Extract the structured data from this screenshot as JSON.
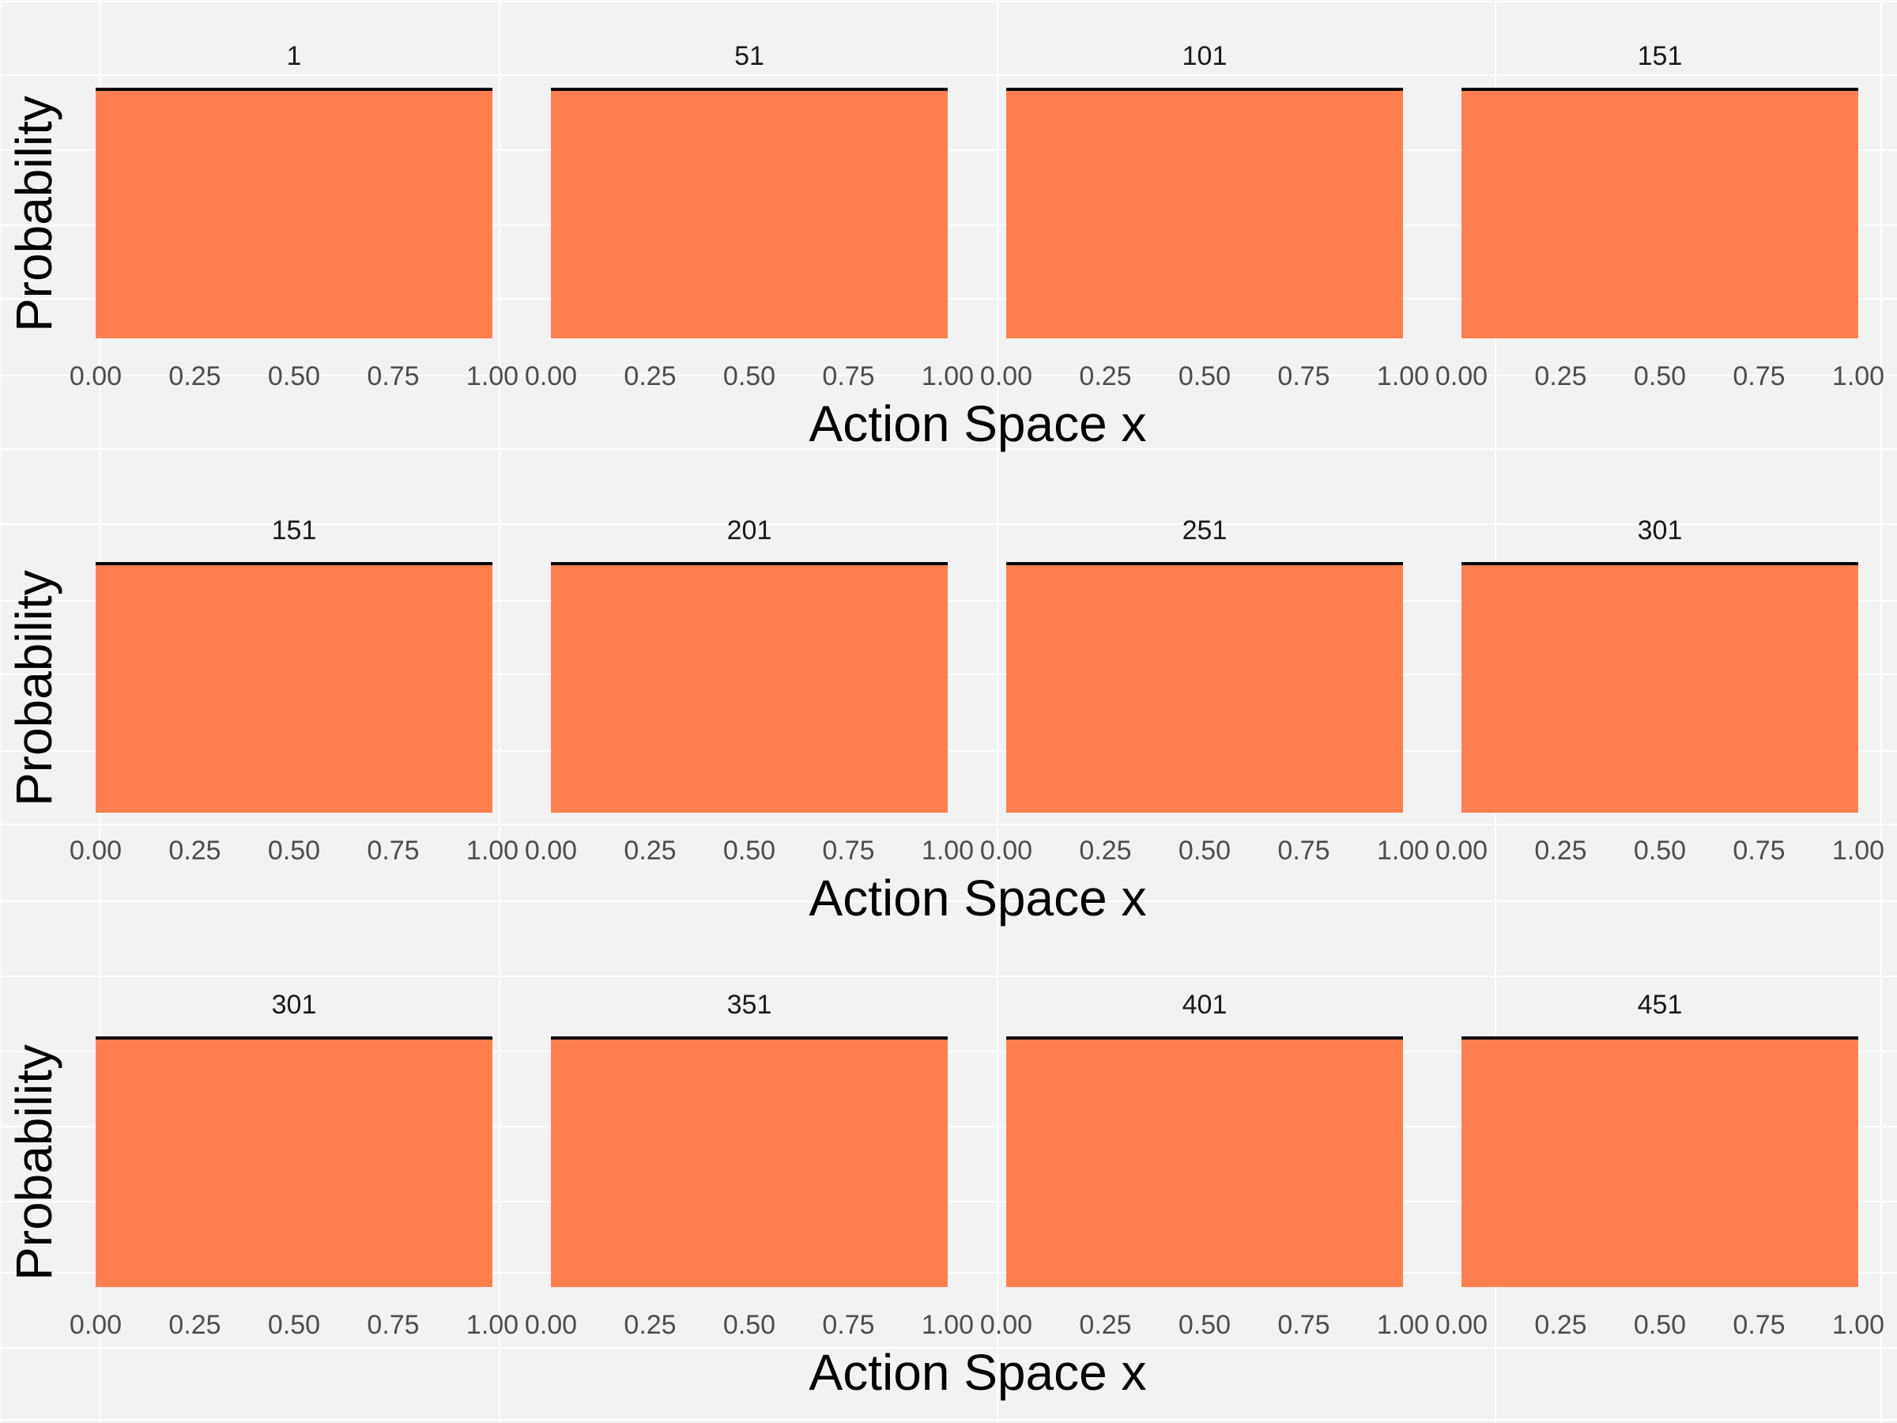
{
  "colors": {
    "background": "#f2f2f2",
    "grid": "#ffffff",
    "fill": "#ff7f50",
    "line": "#000000"
  },
  "chart_data": {
    "type": "area",
    "layout": "facet-grid",
    "x_ticks": [
      "0.00",
      "0.25",
      "0.50",
      "0.75",
      "1.00"
    ],
    "xlim": [
      0,
      1
    ],
    "ylim": [
      0,
      1
    ],
    "grid": true,
    "legend": "none",
    "rows": [
      {
        "xlabel": "Action Space x",
        "ylabel": "Probability",
        "panels": [
          {
            "label": "1",
            "x": [
              0,
              1
            ],
            "y": [
              1,
              1
            ]
          },
          {
            "label": "51",
            "x": [
              0,
              1
            ],
            "y": [
              1,
              1
            ]
          },
          {
            "label": "101",
            "x": [
              0,
              1
            ],
            "y": [
              1,
              1
            ]
          },
          {
            "label": "151",
            "x": [
              0,
              1
            ],
            "y": [
              1,
              1
            ]
          }
        ]
      },
      {
        "xlabel": "Action Space x",
        "ylabel": "Probability",
        "panels": [
          {
            "label": "151",
            "x": [
              0,
              1
            ],
            "y": [
              1,
              1
            ]
          },
          {
            "label": "201",
            "x": [
              0,
              1
            ],
            "y": [
              1,
              1
            ]
          },
          {
            "label": "251",
            "x": [
              0,
              1
            ],
            "y": [
              1,
              1
            ]
          },
          {
            "label": "301",
            "x": [
              0,
              1
            ],
            "y": [
              1,
              1
            ]
          }
        ]
      },
      {
        "xlabel": "Action Space x",
        "ylabel": "Probability",
        "panels": [
          {
            "label": "301",
            "x": [
              0,
              1
            ],
            "y": [
              1,
              1
            ]
          },
          {
            "label": "351",
            "x": [
              0,
              1
            ],
            "y": [
              1,
              1
            ]
          },
          {
            "label": "401",
            "x": [
              0,
              1
            ],
            "y": [
              1,
              1
            ]
          },
          {
            "label": "451",
            "x": [
              0,
              1
            ],
            "y": [
              1,
              1
            ]
          }
        ]
      }
    ]
  }
}
